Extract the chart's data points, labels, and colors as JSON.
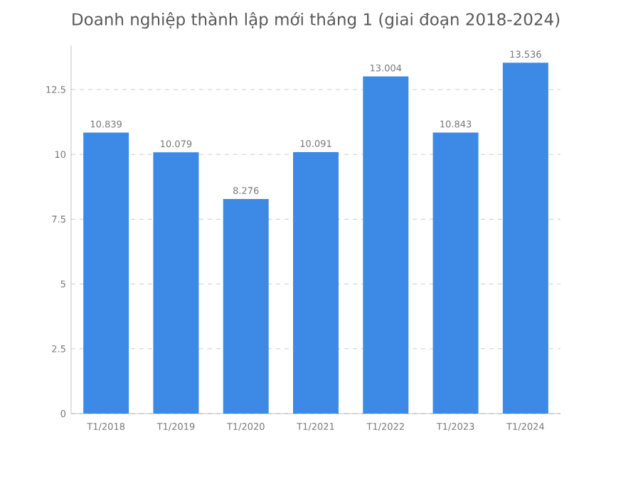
{
  "chart_data": {
    "type": "bar",
    "title": "Doanh nghiệp thành lập mới tháng 1 (giai đoạn 2018-2024)",
    "categories": [
      "T1/2018",
      "T1/2019",
      "T1/2020",
      "T1/2021",
      "T1/2022",
      "T1/2023",
      "T1/2024"
    ],
    "values": [
      10.839,
      10.079,
      8.276,
      10.091,
      13.004,
      10.843,
      13.536
    ],
    "value_labels": [
      "10.839",
      "10.079",
      "8.276",
      "10.091",
      "13.004",
      "10.843",
      "13.536"
    ],
    "color": "#3d8ae6",
    "ylim": [
      0,
      14.2
    ],
    "yticks": [
      0,
      2.5,
      5,
      7.5,
      10,
      12.5
    ],
    "grid": "y"
  }
}
